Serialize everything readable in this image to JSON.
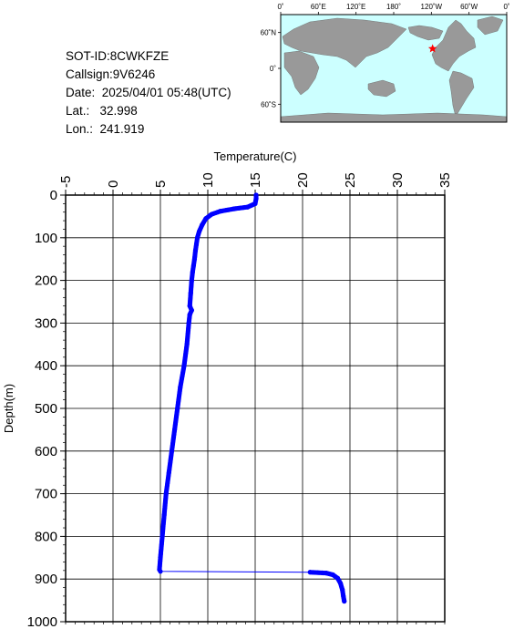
{
  "info": {
    "sot_id": "SOT-ID:8CWKFZE",
    "callsign": "Callsign:9V6246",
    "date": "Date:  2025/04/01 05:48(UTC)",
    "lat": "Lat.:   32.998",
    "lon": "Lon.:  241.919"
  },
  "map": {
    "lon_ticks": [
      "0˚",
      "60˚E",
      "120˚E",
      "180˚",
      "120˚W",
      "60˚W",
      "0˚"
    ],
    "lat_ticks": [
      "60˚N",
      "0˚",
      "60˚S"
    ],
    "marker": {
      "lat": 32.998,
      "lon": 241.919,
      "color": "#ff0000"
    },
    "ocean_color": "#ccffff",
    "land_color": "#999999"
  },
  "chart_data": {
    "type": "line",
    "xlabel": "Temperature(C)",
    "ylabel": "Depth(m)",
    "xlim": [
      -5,
      35
    ],
    "ylim": [
      0,
      1000
    ],
    "y_inverted": true,
    "x_ticks": [
      "-5",
      "0",
      "5",
      "10",
      "15",
      "20",
      "25",
      "30",
      "35"
    ],
    "y_ticks": [
      "0",
      "100",
      "200",
      "300",
      "400",
      "500",
      "600",
      "700",
      "800",
      "900",
      "1000"
    ],
    "grid": true,
    "series": [
      {
        "color": "#0000ff",
        "points": [
          [
            15.1,
            0
          ],
          [
            15.1,
            8
          ],
          [
            15.0,
            20
          ],
          [
            14.2,
            28
          ],
          [
            12.8,
            32
          ],
          [
            11.3,
            38
          ],
          [
            10.4,
            45
          ],
          [
            9.8,
            55
          ],
          [
            9.4,
            70
          ],
          [
            9.1,
            85
          ],
          [
            8.9,
            100
          ],
          [
            8.8,
            115
          ],
          [
            8.7,
            130
          ],
          [
            8.6,
            150
          ],
          [
            8.5,
            165
          ],
          [
            8.4,
            180
          ],
          [
            8.3,
            200
          ],
          [
            8.2,
            230
          ],
          [
            8.1,
            260
          ],
          [
            8.3,
            270
          ],
          [
            8.1,
            280
          ],
          [
            8.0,
            300
          ],
          [
            7.8,
            350
          ],
          [
            7.5,
            400
          ],
          [
            7.1,
            450
          ],
          [
            6.8,
            500
          ],
          [
            6.5,
            550
          ],
          [
            6.2,
            600
          ],
          [
            5.9,
            650
          ],
          [
            5.6,
            700
          ],
          [
            5.4,
            750
          ],
          [
            5.2,
            800
          ],
          [
            5.0,
            850
          ],
          [
            4.9,
            878
          ],
          [
            5.0,
            882
          ],
          [
            20.8,
            884
          ],
          [
            22.5,
            886
          ],
          [
            23.2,
            890
          ],
          [
            23.7,
            898
          ],
          [
            24.0,
            910
          ],
          [
            24.2,
            925
          ],
          [
            24.3,
            940
          ],
          [
            24.4,
            952
          ]
        ]
      }
    ]
  }
}
